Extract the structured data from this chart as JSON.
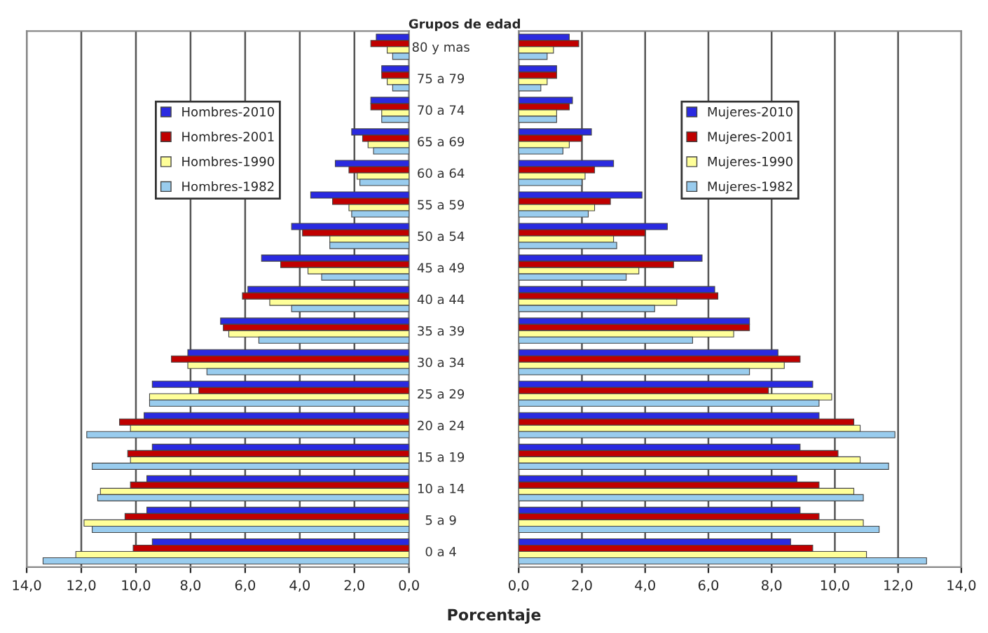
{
  "chart_data": [
    {
      "type": "bar",
      "orientation": "horizontal",
      "xlabel": "Porcentaje",
      "grid": "x",
      "legend": "top",
      "categories": [
        null,
        null,
        null,
        null,
        null,
        null,
        null,
        null,
        null,
        null,
        null,
        null,
        null,
        null,
        null,
        null,
        null
      ],
      "xlim": [
        14,
        0
      ],
      "xticks": [
        {
          "value": 14,
          "label": "14,0"
        },
        {
          "value": 12,
          "label": "12,0"
        },
        {
          "value": 10,
          "label": "10,0"
        },
        {
          "value": 8,
          "label": "8,0"
        },
        {
          "value": 6,
          "label": "6,0"
        },
        {
          "value": 4,
          "label": "4,0"
        },
        {
          "value": 2,
          "label": "2,0"
        },
        {
          "value": 0,
          "label": "0,0"
        }
      ],
      "series": [
        {
          "name": "Hombres-2010",
          "color": "#2a2ae0",
          "values": [
            1.2,
            1.0,
            1.4,
            2.1,
            2.7,
            3.6,
            4.3,
            5.4,
            5.9,
            6.9,
            8.1,
            9.4,
            9.7,
            9.4,
            9.6,
            9.6,
            9.4
          ]
        },
        {
          "name": "Hombres-2001",
          "color": "#c00000",
          "values": [
            1.4,
            1.0,
            1.4,
            1.7,
            2.2,
            2.8,
            3.9,
            4.7,
            6.1,
            6.8,
            8.7,
            7.7,
            10.6,
            10.3,
            10.2,
            10.4,
            10.1
          ]
        },
        {
          "name": "Hombres-1990",
          "color": "#ffff99",
          "values": [
            0.8,
            0.8,
            1.0,
            1.5,
            1.9,
            2.2,
            2.9,
            3.7,
            5.1,
            6.6,
            8.1,
            9.5,
            10.2,
            10.2,
            11.3,
            11.9,
            12.2
          ]
        },
        {
          "name": "Hombres-1982",
          "color": "#99ccee",
          "values": [
            0.6,
            0.6,
            1.0,
            1.3,
            1.8,
            2.1,
            2.9,
            3.2,
            4.3,
            5.5,
            7.4,
            9.5,
            11.8,
            11.6,
            11.4,
            11.6,
            13.4
          ]
        }
      ]
    },
    {
      "type": "bar",
      "orientation": "horizontal",
      "ylabel": "Grupos de edad",
      "grid": "x",
      "legend": "top",
      "categories": [
        "80 y mas",
        "75 a 79",
        "70 a 74",
        "65 a 69",
        "60 a 64",
        "55 a 59",
        "50 a 54",
        "45 a 49",
        "40 a 44",
        "35 a 39",
        "30 a 34",
        "25 a 29",
        "20 a 24",
        "15 a 19",
        "10 a 14",
        "5 a 9",
        "0 a 4"
      ],
      "xlim": [
        0,
        14
      ],
      "xticks": [
        {
          "value": 0,
          "label": "0,0"
        },
        {
          "value": 2,
          "label": "2,0"
        },
        {
          "value": 4,
          "label": "4,0"
        },
        {
          "value": 6,
          "label": "6,0"
        },
        {
          "value": 8,
          "label": "8,0"
        },
        {
          "value": 10,
          "label": "10,0"
        },
        {
          "value": 12,
          "label": "12,0"
        },
        {
          "value": 14,
          "label": "14,0"
        }
      ],
      "series": [
        {
          "name": "Mujeres-2010",
          "color": "#2a2ae0",
          "values": [
            1.6,
            1.2,
            1.7,
            2.3,
            3.0,
            3.9,
            4.7,
            5.8,
            6.2,
            7.3,
            8.2,
            9.3,
            9.5,
            8.9,
            8.8,
            8.9,
            8.6
          ]
        },
        {
          "name": "Mujeres-2001",
          "color": "#c00000",
          "values": [
            1.9,
            1.2,
            1.6,
            2.0,
            2.4,
            2.9,
            4.0,
            4.9,
            6.3,
            7.3,
            8.9,
            7.9,
            10.6,
            10.1,
            9.5,
            9.5,
            9.3
          ]
        },
        {
          "name": "Mujeres-1990",
          "color": "#ffff99",
          "values": [
            1.1,
            0.9,
            1.2,
            1.6,
            2.1,
            2.4,
            3.0,
            3.8,
            5.0,
            6.8,
            8.4,
            9.9,
            10.8,
            10.8,
            10.6,
            10.9,
            11.0
          ]
        },
        {
          "name": "Mujeres-1982",
          "color": "#99ccee",
          "values": [
            0.9,
            0.7,
            1.2,
            1.4,
            2.0,
            2.2,
            3.1,
            3.4,
            4.3,
            5.5,
            7.3,
            9.5,
            11.9,
            11.7,
            10.9,
            11.4,
            12.9
          ]
        }
      ]
    }
  ]
}
